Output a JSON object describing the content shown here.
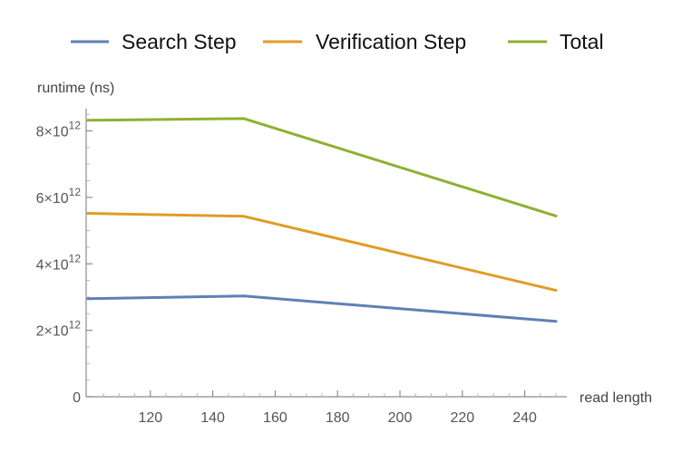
{
  "chart_data": {
    "type": "line",
    "title": "",
    "xlabel": "read length",
    "ylabel": "runtime (ns)",
    "xlim": [
      100,
      250
    ],
    "ylim": [
      0,
      8800000000000.0
    ],
    "x_ticks": [
      120,
      140,
      160,
      180,
      200,
      220,
      240
    ],
    "x_tick_labels": [
      "120",
      "140",
      "160",
      "180",
      "200",
      "220",
      "240"
    ],
    "y_ticks": [
      0,
      2000000000000.0,
      4000000000000.0,
      6000000000000.0,
      8000000000000.0
    ],
    "y_tick_labels": [
      {
        "mantissa": "0",
        "exponent": ""
      },
      {
        "mantissa": "2×10",
        "exponent": "12"
      },
      {
        "mantissa": "4×10",
        "exponent": "12"
      },
      {
        "mantissa": "6×10",
        "exponent": "12"
      },
      {
        "mantissa": "8×10",
        "exponent": "12"
      }
    ],
    "grid": false,
    "legend_position": "top",
    "series": [
      {
        "name": "Search Step",
        "color": "#5e81b5",
        "points": [
          [
            100,
            2950000000000.0
          ],
          [
            150,
            3030000000000.0
          ],
          [
            250,
            2270000000000.0
          ]
        ]
      },
      {
        "name": "Verification Step",
        "color": "#e19c24",
        "points": [
          [
            100,
            5520000000000.0
          ],
          [
            150,
            5430000000000.0
          ],
          [
            250,
            3200000000000.0
          ]
        ]
      },
      {
        "name": "Total",
        "color": "#8fb032",
        "points": [
          [
            100,
            8320000000000.0
          ],
          [
            150,
            8370000000000.0
          ],
          [
            250,
            5440000000000.0
          ]
        ]
      }
    ]
  }
}
